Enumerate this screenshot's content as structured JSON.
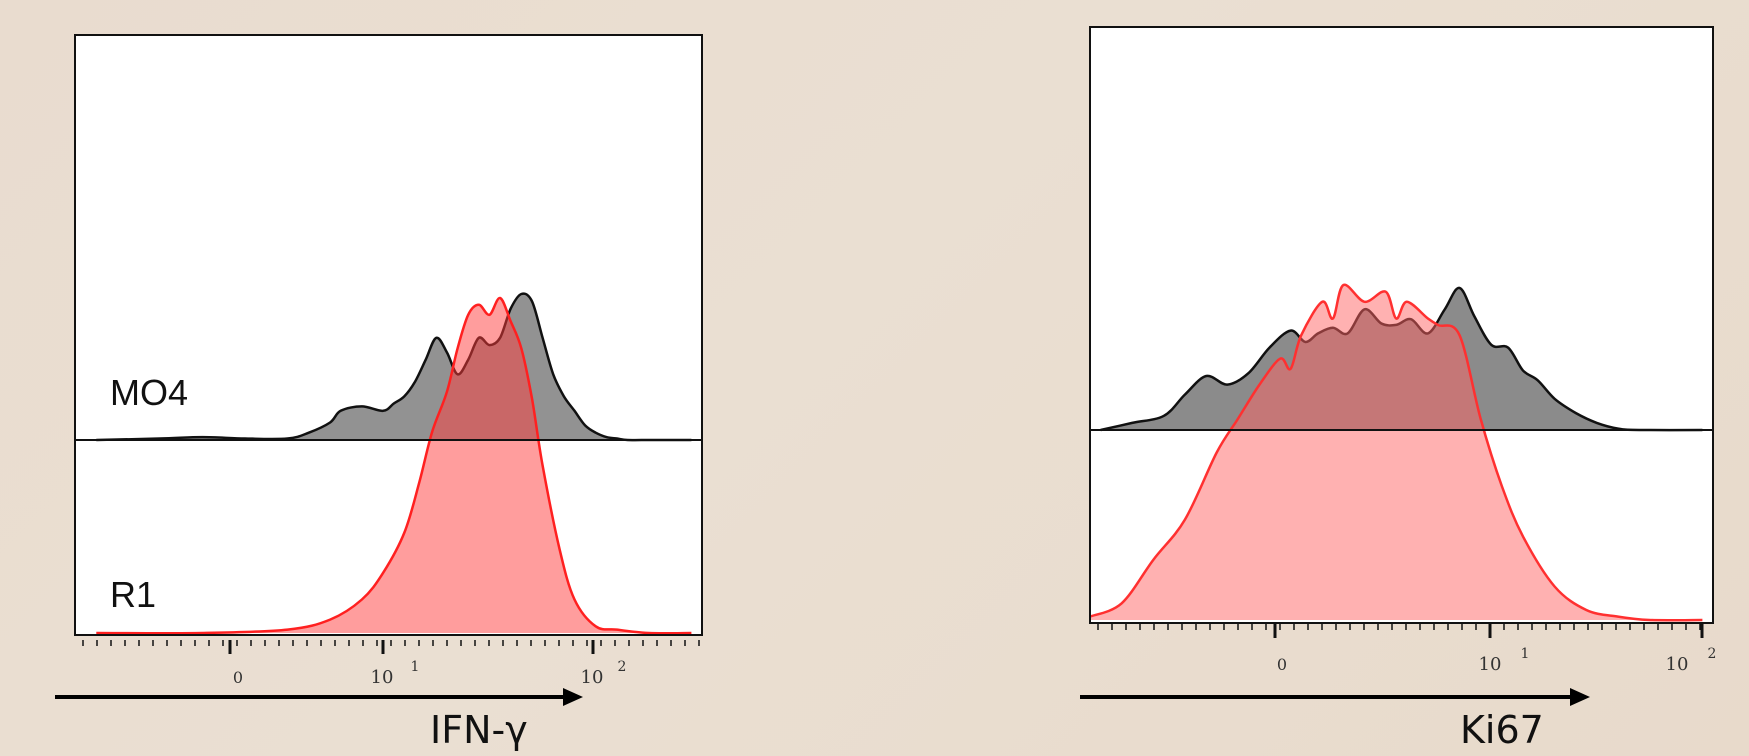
{
  "chart_data": [
    {
      "type": "area",
      "scale": "biexponential",
      "x_tick_labels": [
        "0",
        "10",
        "1",
        "10",
        "2"
      ],
      "xlabel": "IFN-γ",
      "samples": [
        "MO4",
        "R1"
      ],
      "series": [
        {
          "name": "MO4",
          "color": "#808080",
          "x": [
            -0.8,
            -0.5,
            -0.3,
            -0.1,
            0.1,
            0.2,
            0.3,
            0.35,
            0.45,
            0.55,
            0.6,
            0.65,
            0.7,
            0.75,
            0.8,
            0.85,
            0.9,
            0.95,
            1.0,
            1.05,
            1.1,
            1.15,
            1.2,
            1.25,
            1.3,
            1.35,
            1.4,
            1.45,
            1.5,
            1.55,
            1.6,
            1.65,
            1.7,
            1.8,
            1.9,
            2.0
          ],
          "y": [
            0,
            0.01,
            0.02,
            0.01,
            0.01,
            0.05,
            0.12,
            0.2,
            0.23,
            0.2,
            0.25,
            0.3,
            0.4,
            0.55,
            0.7,
            0.6,
            0.45,
            0.55,
            0.7,
            0.65,
            0.7,
            0.9,
            1.0,
            0.95,
            0.7,
            0.45,
            0.3,
            0.2,
            0.1,
            0.05,
            0.02,
            0.01,
            0,
            0,
            0,
            0
          ]
        },
        {
          "name": "R1",
          "color": "#ff4c4c",
          "x": [
            -0.8,
            -0.3,
            0.1,
            0.3,
            0.45,
            0.55,
            0.65,
            0.72,
            0.78,
            0.85,
            0.9,
            0.95,
            1.0,
            1.05,
            1.1,
            1.15,
            1.2,
            1.25,
            1.3,
            1.38,
            1.45,
            1.55,
            1.65,
            1.8,
            2.0
          ],
          "y": [
            0,
            0,
            0.01,
            0.04,
            0.1,
            0.18,
            0.3,
            0.45,
            0.6,
            0.72,
            0.85,
            0.95,
            0.98,
            0.95,
            1.0,
            0.93,
            0.85,
            0.7,
            0.5,
            0.25,
            0.1,
            0.02,
            0.01,
            0,
            0
          ]
        }
      ]
    },
    {
      "type": "area",
      "scale": "biexponential",
      "x_tick_labels": [
        "0",
        "10",
        "1",
        "10",
        "2"
      ],
      "xlabel": "Ki67",
      "samples": [],
      "series": [
        {
          "name": "",
          "color": "#808080",
          "x": [
            -0.85,
            -0.7,
            -0.55,
            -0.45,
            -0.35,
            -0.25,
            -0.15,
            -0.05,
            0.05,
            0.12,
            0.18,
            0.25,
            0.32,
            0.4,
            0.48,
            0.55,
            0.62,
            0.7,
            0.78,
            0.85,
            0.92,
            1.0,
            1.08,
            1.15,
            1.22,
            1.3,
            1.4,
            1.5,
            1.6,
            1.7,
            2.0
          ],
          "y": [
            0,
            0.05,
            0.1,
            0.25,
            0.38,
            0.32,
            0.4,
            0.58,
            0.7,
            0.62,
            0.68,
            0.72,
            0.68,
            0.85,
            0.75,
            0.74,
            0.78,
            0.68,
            0.85,
            1.0,
            0.8,
            0.6,
            0.58,
            0.42,
            0.35,
            0.22,
            0.12,
            0.05,
            0.01,
            0,
            0
          ]
        },
        {
          "name": "",
          "color": "#ff6b6b",
          "x": [
            -0.9,
            -0.75,
            -0.6,
            -0.45,
            -0.3,
            -0.2,
            -0.1,
            0.0,
            0.05,
            0.1,
            0.2,
            0.25,
            0.3,
            0.4,
            0.5,
            0.55,
            0.6,
            0.7,
            0.75,
            0.85,
            0.95,
            1.05,
            1.15,
            1.3,
            1.45,
            1.6,
            1.75,
            2.0
          ],
          "y": [
            0.01,
            0.05,
            0.18,
            0.3,
            0.5,
            0.6,
            0.7,
            0.78,
            0.75,
            0.85,
            0.95,
            0.9,
            1.0,
            0.95,
            0.98,
            0.9,
            0.95,
            0.9,
            0.88,
            0.85,
            0.6,
            0.4,
            0.25,
            0.1,
            0.03,
            0.01,
            0,
            0
          ]
        }
      ]
    }
  ]
}
